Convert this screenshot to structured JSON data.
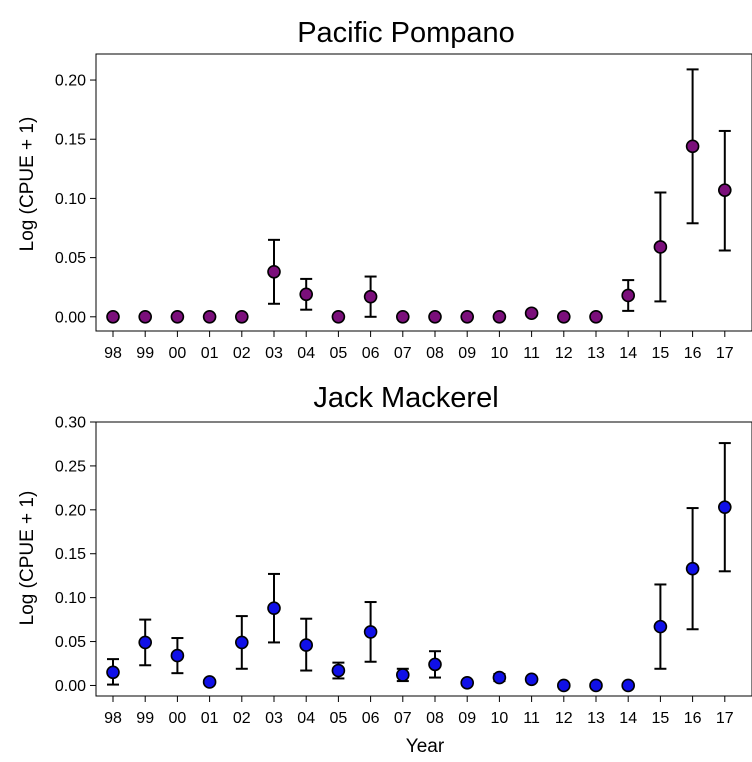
{
  "chart_data": [
    {
      "type": "scatter",
      "title": "Pacific Pompano",
      "xlabel": "",
      "ylabel": "Log (CPUE + 1)",
      "categories": [
        "98",
        "99",
        "00",
        "01",
        "02",
        "03",
        "04",
        "05",
        "06",
        "07",
        "08",
        "09",
        "10",
        "11",
        "12",
        "13",
        "14",
        "15",
        "16",
        "17"
      ],
      "ylim": [
        -0.012,
        0.222
      ],
      "yticks": [
        "0.00",
        "0.05",
        "0.10",
        "0.15",
        "0.20"
      ],
      "marker_color": "#7b0f7b",
      "values": [
        0.0,
        0.0,
        0.0,
        0.0,
        0.0,
        0.038,
        0.019,
        0.0,
        0.017,
        0.0,
        0.0,
        0.0,
        0.0,
        0.003,
        0.0,
        0.0,
        0.018,
        0.059,
        0.144,
        0.107
      ],
      "err_low": [
        0.0,
        0.0,
        0.0,
        0.0,
        0.0,
        0.011,
        0.006,
        0.0,
        0.0,
        0.0,
        0.0,
        0.0,
        0.0,
        0.003,
        0.0,
        0.0,
        0.005,
        0.013,
        0.079,
        0.056
      ],
      "err_high": [
        0.0,
        0.0,
        0.0,
        0.0,
        0.0,
        0.065,
        0.032,
        0.0,
        0.034,
        0.0,
        0.0,
        0.0,
        0.0,
        0.003,
        0.0,
        0.0,
        0.031,
        0.105,
        0.209,
        0.157
      ]
    },
    {
      "type": "scatter",
      "title": "Jack Mackerel",
      "xlabel": "Year",
      "ylabel": "Log (CPUE + 1)",
      "categories": [
        "98",
        "99",
        "00",
        "01",
        "02",
        "03",
        "04",
        "05",
        "06",
        "07",
        "08",
        "09",
        "10",
        "11",
        "12",
        "13",
        "14",
        "15",
        "16",
        "17"
      ],
      "ylim": [
        -0.012,
        0.3
      ],
      "yticks": [
        "0.00",
        "0.05",
        "0.10",
        "0.15",
        "0.20",
        "0.25",
        "0.30"
      ],
      "marker_color": "#1010e8",
      "values": [
        0.015,
        0.049,
        0.034,
        0.004,
        0.049,
        0.088,
        0.046,
        0.017,
        0.061,
        0.012,
        0.024,
        0.003,
        0.009,
        0.007,
        0.0,
        0.0,
        0.0,
        0.067,
        0.133,
        0.203
      ],
      "err_low": [
        0.001,
        0.023,
        0.014,
        0.004,
        0.019,
        0.049,
        0.017,
        0.008,
        0.027,
        0.005,
        0.009,
        0.003,
        0.005,
        0.007,
        0.0,
        0.0,
        0.0,
        0.019,
        0.064,
        0.13
      ],
      "err_high": [
        0.03,
        0.075,
        0.054,
        0.004,
        0.079,
        0.127,
        0.076,
        0.026,
        0.095,
        0.019,
        0.039,
        0.003,
        0.013,
        0.007,
        0.0,
        0.0,
        0.0,
        0.115,
        0.202,
        0.276
      ]
    }
  ]
}
